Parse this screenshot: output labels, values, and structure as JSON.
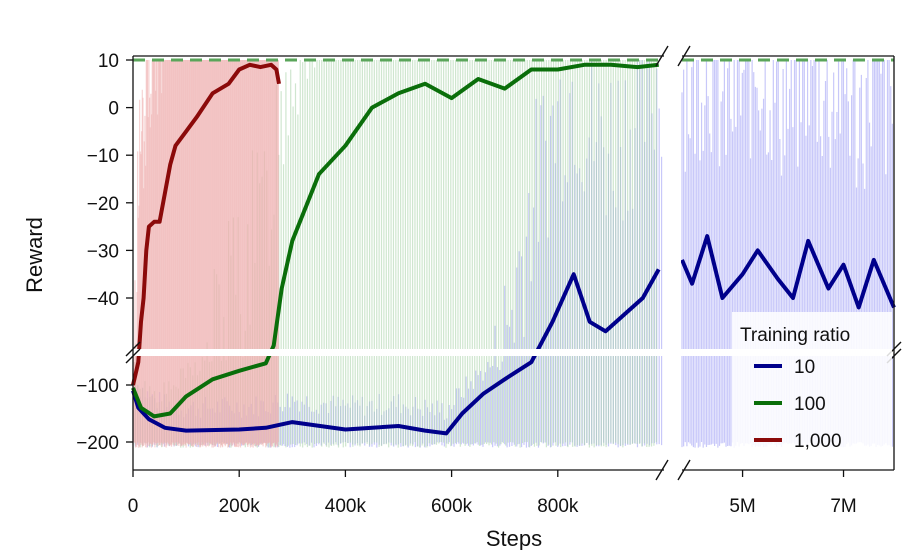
{
  "chart_data": {
    "type": "line",
    "title": "",
    "xlabel": "Steps",
    "ylabel": "Reward",
    "x_axis_break": {
      "from": 1000000,
      "to": 3800000
    },
    "y_axis_break": {
      "upper_panel_min": -50,
      "lower_panel_max": -60
    },
    "xlim": [
      0,
      8000000
    ],
    "ylim_upper": [
      -50,
      10
    ],
    "ylim_lower": [
      -230,
      -60
    ],
    "x_ticks": [
      {
        "value": 0,
        "label": "0"
      },
      {
        "value": 200000,
        "label": "200k"
      },
      {
        "value": 400000,
        "label": "400k"
      },
      {
        "value": 600000,
        "label": "600k"
      },
      {
        "value": 800000,
        "label": "800k"
      },
      {
        "value": 5000000,
        "label": "5M"
      },
      {
        "value": 7000000,
        "label": "7M"
      }
    ],
    "y_ticks_upper": [
      {
        "value": 10,
        "label": "10"
      },
      {
        "value": 0,
        "label": "0"
      },
      {
        "value": -10,
        "label": "-10"
      },
      {
        "value": -20,
        "label": "-20"
      },
      {
        "value": -30,
        "label": "-30"
      },
      {
        "value": -40,
        "label": "-40"
      }
    ],
    "y_ticks_lower": [
      {
        "value": -100,
        "label": "-100"
      },
      {
        "value": -200,
        "label": "-200"
      }
    ],
    "reference_line": {
      "y": 10,
      "color": "#5aa55a",
      "style": "dashed"
    },
    "legend": {
      "title": "Training ratio",
      "position": "bottom-right"
    },
    "series": [
      {
        "name": "10",
        "color": "#00008b",
        "shade_color": "#9c9cf5",
        "x": [
          0,
          10000,
          30000,
          60000,
          100000,
          200000,
          250000,
          300000,
          400000,
          500000,
          550000,
          590000,
          620000,
          660000,
          700000,
          750000,
          790000,
          830000,
          860000,
          890000,
          930000,
          960000,
          990000,
          3800000,
          4000000,
          4300000,
          4600000,
          5000000,
          5300000,
          5700000,
          6000000,
          6300000,
          6700000,
          7000000,
          7300000,
          7600000,
          8000000
        ],
        "y": [
          -110,
          -140,
          -160,
          -175,
          -180,
          -178,
          -175,
          -165,
          -178,
          -172,
          -180,
          -185,
          -150,
          -115,
          -90,
          -60,
          -45,
          -35,
          -45,
          -47,
          -43,
          -40,
          -34,
          -32,
          -37,
          -27,
          -40,
          -35,
          -30,
          -36,
          -40,
          -28,
          -38,
          -33,
          -42,
          -32,
          -42
        ]
      },
      {
        "name": "100",
        "color": "#0a6e0a",
        "shade_color": "#a8d2a8",
        "x": [
          0,
          15000,
          40000,
          70000,
          100000,
          150000,
          200000,
          250000,
          265000,
          280000,
          300000,
          350000,
          400000,
          450000,
          500000,
          550000,
          600000,
          650000,
          700000,
          750000,
          800000,
          850000,
          900000,
          950000,
          990000
        ],
        "y": [
          -105,
          -140,
          -155,
          -150,
          -120,
          -90,
          -75,
          -62,
          -50,
          -38,
          -28,
          -14,
          -8,
          0,
          3,
          5,
          2,
          6,
          4,
          8,
          8,
          9,
          9,
          8.5,
          9
        ],
        "pending_note": null
      },
      {
        "name": "1,000",
        "color": "#8b0a0a",
        "shade_color": "#efb0b0",
        "x": [
          0,
          5000,
          10000,
          15000,
          20000,
          25000,
          30000,
          40000,
          50000,
          60000,
          70000,
          80000,
          100000,
          120000,
          150000,
          180000,
          200000,
          220000,
          240000,
          260000,
          270000,
          275000
        ],
        "y": [
          -100,
          -80,
          -60,
          -45,
          -40,
          -30,
          -25,
          -24,
          -24,
          -18,
          -12,
          -8,
          -5,
          -2,
          3,
          5,
          8,
          9,
          8.5,
          9,
          8,
          5
        ]
      }
    ]
  }
}
